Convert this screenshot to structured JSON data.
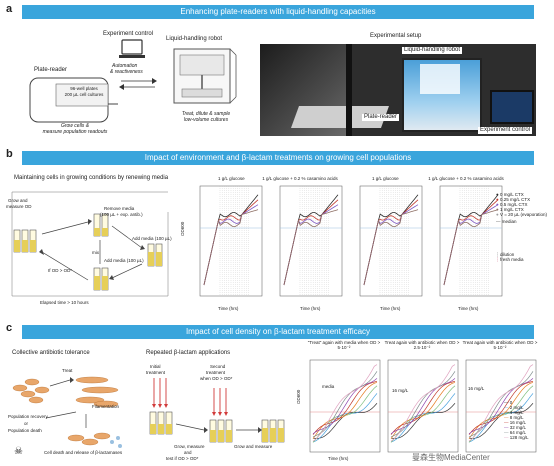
{
  "panel_a": {
    "letter": "a",
    "banner": "Enhancing plate-readers with liquid-handling capacities",
    "plate_reader_title": "Plate-reader",
    "plate_label_1": "96-well plates",
    "plate_label_2": "200 µL cell cultures",
    "grow_text_1": "Grow cells &",
    "grow_text_2": "measure population readouts",
    "experiment_control_title": "Experiment control",
    "automation_1": "Automation",
    "automation_2": "& reactiveness",
    "robot_title": "Liquid-handling robot",
    "treat_text_1": "Treat, dilute & sample",
    "treat_text_2": "low-volume cultures",
    "setup_title": "Experimental setup",
    "photo_label_robot": "Liquid-handling robot",
    "photo_label_reader": "Plate-reader",
    "photo_label_control": "Experiment control"
  },
  "panel_b": {
    "letter": "b",
    "banner": "Impact of environment and β-lactam treatments on growing cell populations",
    "subtitle": "Maintaining cells in growing conditions by renewing media",
    "grow_od_1": "Grow and",
    "grow_od_2": "measure OD",
    "remove_media_1": "Remove media",
    "remove_media_2": "(100 µL + exp. antib.)",
    "add_media_1": "Add media (100 µL)",
    "add_media_2": "Add media (100 µL)",
    "mix": "mix",
    "condition": "If OD > OD*",
    "elapsed": "Elapsed time > 10 hours",
    "plot_titles": [
      "1 g/L glucose",
      "1 g/L glucose + 0.2 % casamino acids",
      "1 g/L glucose",
      "1 g/L glucose + 0.2 % casamino acids"
    ],
    "ylabel": "OD600",
    "xlabel": "Time (hrs)",
    "x_ticks": [
      "0",
      "10",
      "20"
    ],
    "y_ticks": [
      "10⁻¹",
      "10⁻²",
      "10⁻³"
    ],
    "legend": [
      "0 mg/L CTX",
      "0.25 mg/L CTX",
      "0.5 mg/L CTX",
      "1 mg/L CTX",
      "V = 20 µL (evaporation)",
      "median",
      "dilution",
      "fresh media"
    ],
    "legend_colors": [
      "#2b2b2b",
      "#c0392b",
      "#7e57c2",
      "#8d6e63",
      "#9e9e9e",
      "#4a4a4a",
      "#999999",
      "#d98aa0"
    ]
  },
  "panel_c": {
    "letter": "c",
    "banner": "Impact of cell density on β-lactam treatment efficacy",
    "tolerance_title": "Collective antibiotic tolerance",
    "treat": "Treat",
    "filamentation": "Filamentation",
    "population_recovery": "Population recovery",
    "or": "or",
    "population_death": "Population death",
    "cell_death_text": "Cell death and release of β-lactamases",
    "repeated_title": "Repeated β-lactam applications",
    "initial_treatment_1": "Initial",
    "initial_treatment_2": "treatment",
    "second_treatment_1": "Second",
    "second_treatment_2": "treatment",
    "second_treatment_3": "when OD > OD*",
    "grow_measure_1": "Grow, measure",
    "grow_measure_2": "and",
    "grow_measure_3": "test if OD > OD*",
    "grow_and_measure": "Grow and measure",
    "plot_titles": [
      "\"Treat\" again with media when OD > 5·10⁻²",
      "Treat again with antibiotic when OD > 2.5·10⁻²",
      "Treat again with antibiotic when OD > 5·10⁻²"
    ],
    "annot_media": "media",
    "annot_16_1": "16 mg/L",
    "annot_16_2": "16 mg/L",
    "ylabel": "OD600",
    "xlabel": "Time (hrs)",
    "x_ticks": [
      "0",
      "10",
      "20"
    ],
    "legend": [
      "0",
      "2 mg/L",
      "4 mg/L",
      "8 mg/L",
      "16 mg/L",
      "32 mg/L",
      "64 mg/L",
      "128 mg/L"
    ],
    "legend_colors": [
      "#333333",
      "#4aa3df",
      "#7fbf7f",
      "#e67e22",
      "#c0392b",
      "#8e44ad",
      "#7f8c8d",
      "#e0a3c0"
    ],
    "watermark": "曼森生物MediaCenter"
  }
}
